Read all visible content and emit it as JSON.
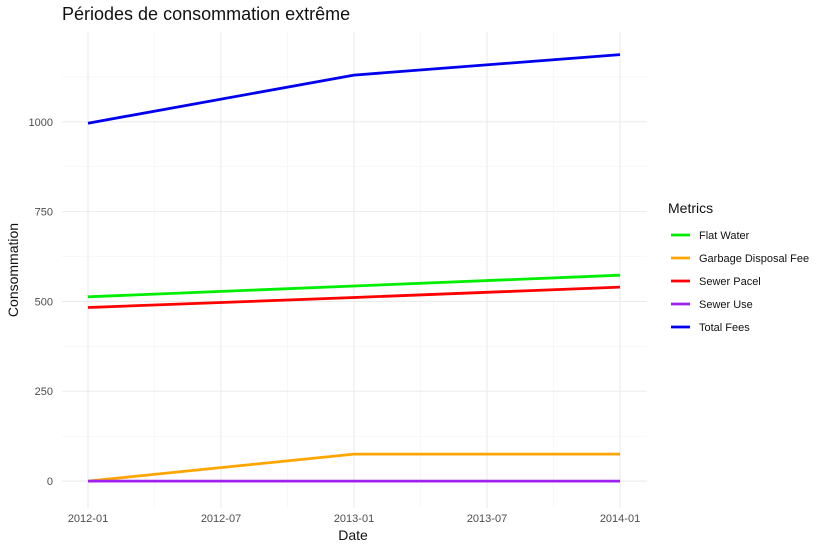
{
  "chart_data": {
    "type": "line",
    "title": "Périodes de consommation extrême",
    "xlabel": "Date",
    "ylabel": "Consommation",
    "x": [
      "2012-01",
      "2013-01",
      "2014-01"
    ],
    "x_ticks": [
      "2012-01",
      "2012-07",
      "2013-01",
      "2013-07",
      "2014-01"
    ],
    "xlim": [
      "2012-01",
      "2014-01"
    ],
    "y_ticks": [
      0,
      250,
      500,
      750,
      1000
    ],
    "ylim": [
      -75,
      1250
    ],
    "grid": true,
    "legend": {
      "title": "Metrics",
      "position": "right"
    },
    "series": [
      {
        "name": "Flat Water",
        "color": "#00ee00",
        "values": [
          513,
          543,
          573
        ]
      },
      {
        "name": "Garbage Disposal Fee",
        "color": "#ffa500",
        "values": [
          0,
          75,
          75
        ]
      },
      {
        "name": "Sewer Pacel",
        "color": "#ff0000",
        "values": [
          483,
          511,
          540
        ]
      },
      {
        "name": "Sewer Use",
        "color": "#a020f0",
        "values": [
          0,
          0,
          0
        ]
      },
      {
        "name": "Total Fees",
        "color": "#0000ee",
        "values": [
          996,
          1130,
          1187
        ]
      }
    ]
  }
}
